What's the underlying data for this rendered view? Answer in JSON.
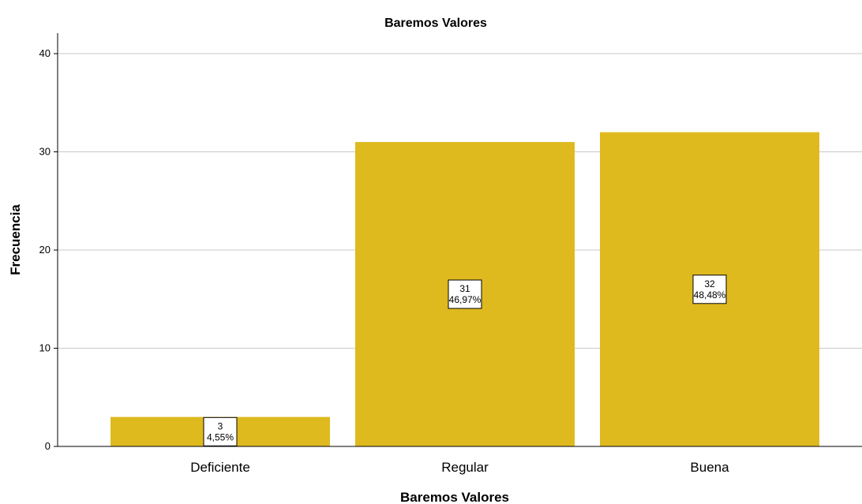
{
  "chart_data": {
    "type": "bar",
    "title": "Baremos Valores",
    "xlabel": "Baremos Valores",
    "ylabel": "Frecuencia",
    "categories": [
      "Deficiente",
      "Regular",
      "Buena"
    ],
    "values": [
      3,
      31,
      32
    ],
    "data_labels": [
      {
        "count": "3",
        "percent": "4,55%"
      },
      {
        "count": "31",
        "percent": "46,97%"
      },
      {
        "count": "32",
        "percent": "48,48%"
      }
    ],
    "ylim": [
      0,
      42
    ],
    "yticks": [
      "0",
      "10",
      "20",
      "30",
      "40"
    ],
    "grid": true,
    "legend": "none",
    "colors": {
      "bar": "#DFBA1F",
      "grid": "#C8C8C8",
      "axis": "#000000"
    }
  }
}
